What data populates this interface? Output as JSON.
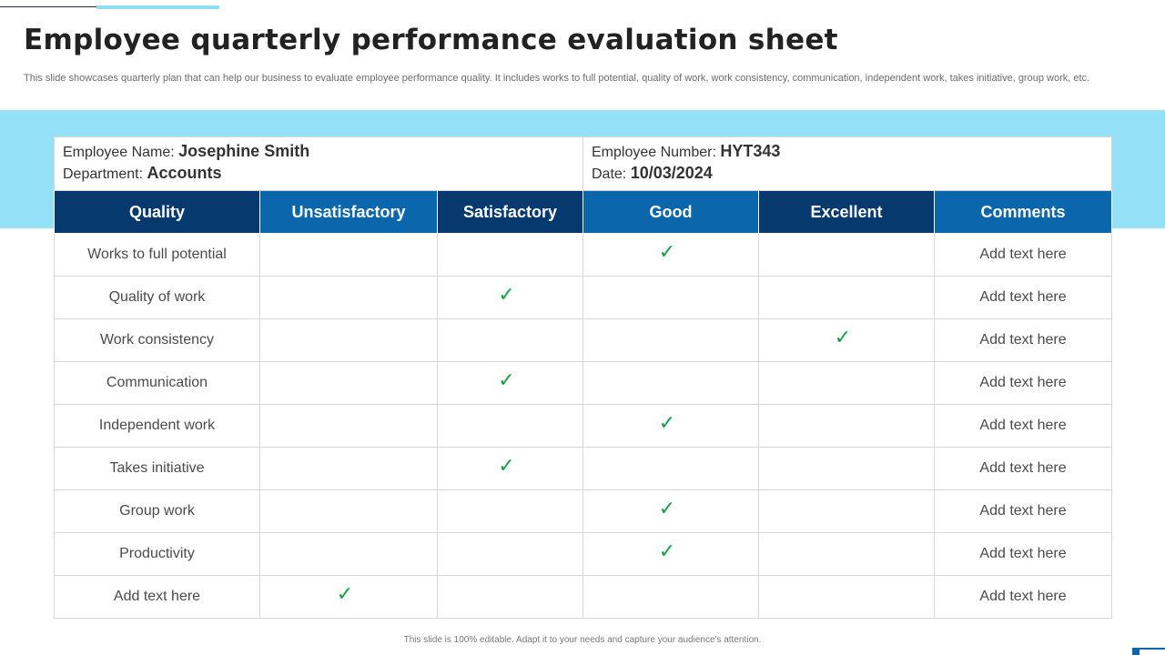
{
  "title": "Employee quarterly performance evaluation sheet",
  "subtitle": "This slide showcases quarterly plan that can help our business to evaluate employee performance quality. It includes works to full potential, quality of work, work consistency, communication, independent work, takes initiative, group work, etc.",
  "employee": {
    "name_label": "Employee Name",
    "name": "Josephine Smith",
    "department_label": "Department",
    "department": "Accounts",
    "number_label": "Employee Number",
    "number": "HYT343",
    "date_label": "Date",
    "date": "10/03/2024"
  },
  "columns": [
    "Quality",
    "Unsatisfactory",
    "Satisfactory",
    "Good",
    "Excellent",
    "Comments"
  ],
  "rating_mark": "✓",
  "colors": {
    "header_dark": "#063a6e",
    "header_mid": "#0b66ab",
    "band": "#93e0f7",
    "check": "#13a24a"
  },
  "rows": [
    {
      "quality": "Works to full potential",
      "rating": "Good",
      "comment": "Add text here"
    },
    {
      "quality": "Quality  of work",
      "rating": "Satisfactory",
      "comment": "Add text here"
    },
    {
      "quality": "Work consistency",
      "rating": "Excellent",
      "comment": "Add text here"
    },
    {
      "quality": "Communication",
      "rating": "Satisfactory",
      "comment": "Add text here"
    },
    {
      "quality": "Independent  work",
      "rating": "Good",
      "comment": "Add text here"
    },
    {
      "quality": "Takes initiative",
      "rating": "Satisfactory",
      "comment": "Add text here"
    },
    {
      "quality": "Group work",
      "rating": "Good",
      "comment": "Add text here"
    },
    {
      "quality": "Productivity",
      "rating": "Good",
      "comment": "Add text here"
    },
    {
      "quality": "Add text here",
      "rating": "Unsatisfactory",
      "comment": "Add text here"
    }
  ],
  "footer": "This slide is 100% editable. Adapt it to your needs and capture your audience's attention."
}
